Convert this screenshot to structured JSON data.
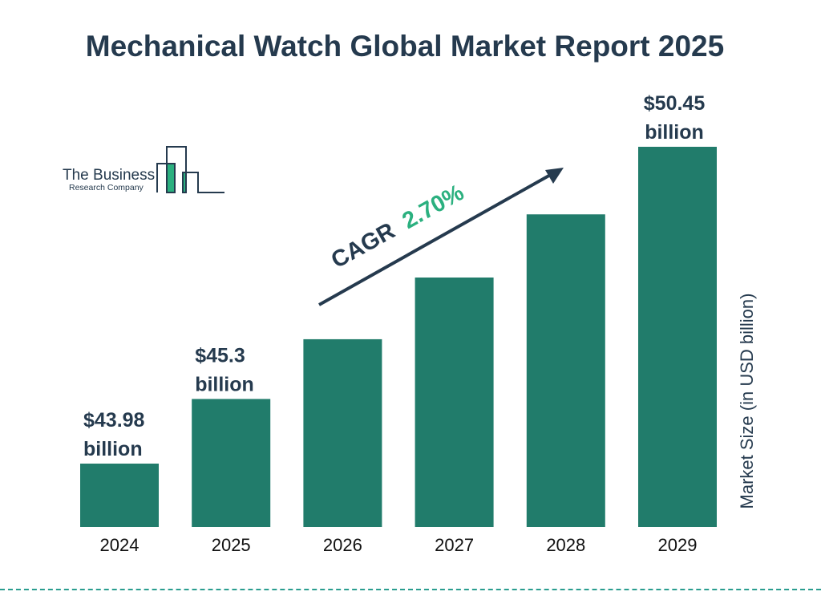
{
  "title": "Mechanical Watch Global Market Report 2025",
  "logo": {
    "line1": "The Business",
    "line2": "Research Company"
  },
  "cagr": {
    "label": "CAGR",
    "value": "2.70%"
  },
  "colors": {
    "bar": "#217c6b",
    "text": "#253a4e",
    "accent": "#2bb07f",
    "dash": "#2a9d8f"
  },
  "chart_data": {
    "type": "bar",
    "title": "Mechanical Watch Global Market Report 2025",
    "ylabel": "Market Size (in USD billion)",
    "categories": [
      "2024",
      "2025",
      "2026",
      "2027",
      "2028",
      "2029"
    ],
    "values": [
      43.98,
      45.3,
      46.52,
      47.78,
      49.07,
      50.45
    ],
    "data_labels": [
      {
        "index": 0,
        "line1": "$43.98",
        "line2": "billion"
      },
      {
        "index": 1,
        "line1": "$45.3",
        "line2": "billion"
      },
      {
        "index": 5,
        "line1": "$50.45",
        "line2": "billion"
      }
    ],
    "grid": false
  }
}
